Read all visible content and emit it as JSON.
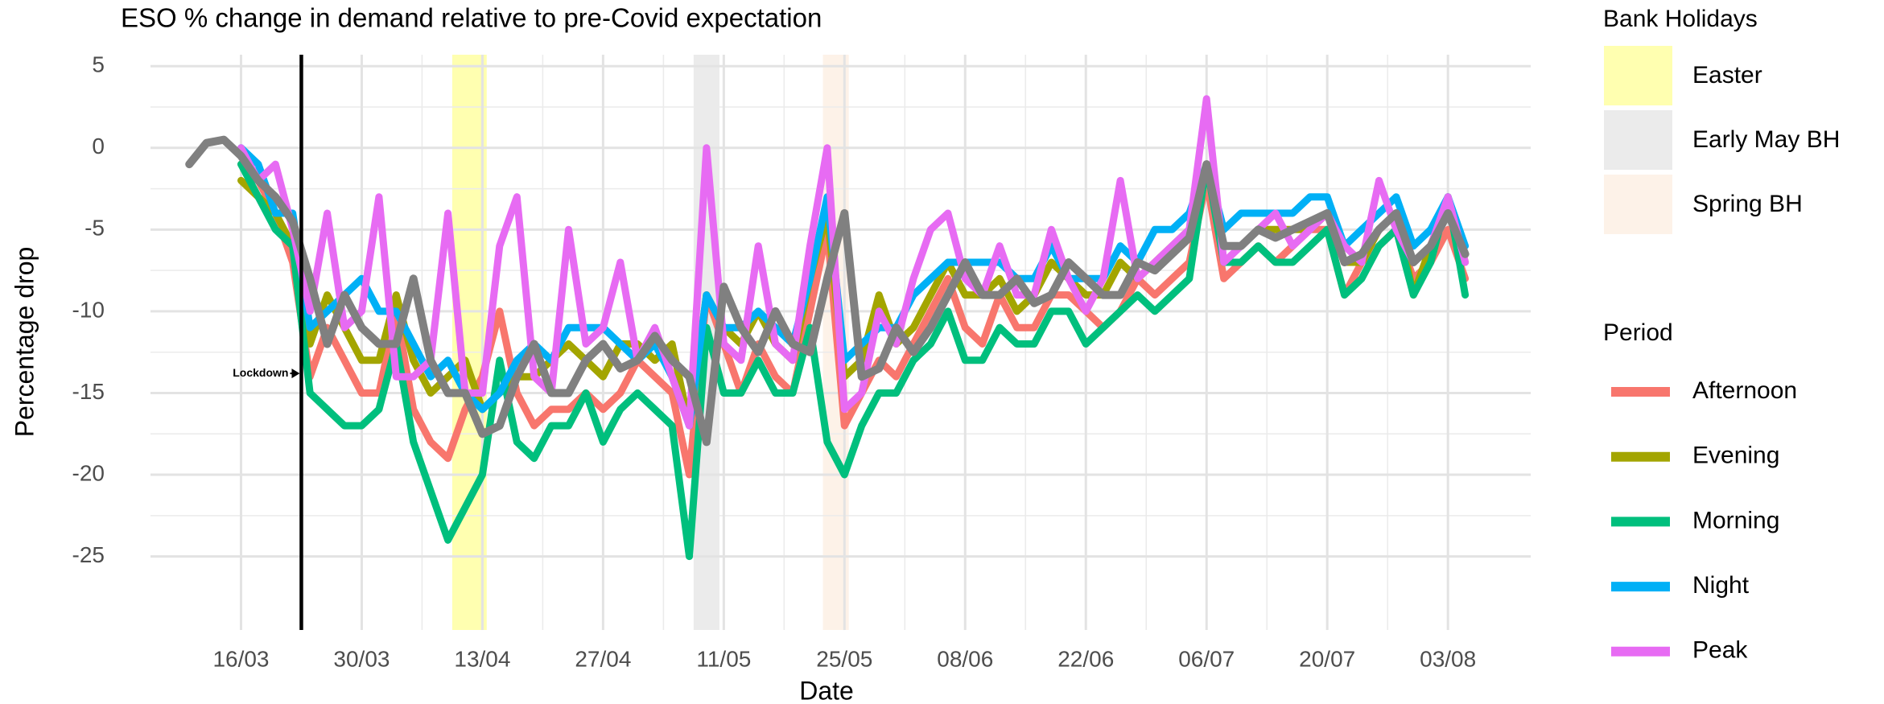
{
  "chart_data": {
    "type": "line",
    "title": "ESO % change in demand relative to pre-Covid expectation",
    "x_label": "Date",
    "y_label": "Percentage drop",
    "x": [
      "10/03",
      "12/03",
      "14/03",
      "16/03",
      "18/03",
      "20/03",
      "22/03",
      "24/03",
      "26/03",
      "28/03",
      "30/03",
      "01/04",
      "03/04",
      "05/04",
      "07/04",
      "09/04",
      "11/04",
      "13/04",
      "15/04",
      "17/04",
      "19/04",
      "21/04",
      "23/04",
      "25/04",
      "27/04",
      "29/04",
      "01/05",
      "03/05",
      "05/05",
      "07/05",
      "09/05",
      "11/05",
      "13/05",
      "15/05",
      "17/05",
      "19/05",
      "21/05",
      "23/05",
      "25/05",
      "27/05",
      "29/05",
      "31/05",
      "02/06",
      "04/06",
      "06/06",
      "08/06",
      "10/06",
      "12/06",
      "14/06",
      "16/06",
      "18/06",
      "20/06",
      "22/06",
      "24/06",
      "26/06",
      "28/06",
      "30/06",
      "02/07",
      "04/07",
      "06/07",
      "08/07",
      "10/07",
      "12/07",
      "14/07",
      "16/07",
      "18/07",
      "20/07",
      "22/07",
      "24/07",
      "26/07",
      "28/07",
      "30/07",
      "01/08",
      "03/08",
      "05/08"
    ],
    "xticks": [
      "16/03",
      "30/03",
      "13/04",
      "27/04",
      "11/05",
      "25/05",
      "08/06",
      "22/06",
      "06/07",
      "20/07",
      "03/08"
    ],
    "ylim": [
      -29.5,
      5.7
    ],
    "yticks": [
      5,
      0,
      -5,
      -10,
      -15,
      -20,
      -25
    ],
    "grid": true,
    "series": [
      {
        "name": "Afternoon",
        "color": "#F8766D",
        "values": [
          null,
          null,
          null,
          -1,
          -2,
          -4,
          -7,
          -14,
          -11,
          -13,
          -15,
          -15,
          -10,
          -16,
          -18,
          -19,
          -16,
          -14,
          -10,
          -15,
          -17,
          -16,
          -16,
          -15,
          -16,
          -15,
          -13,
          -14,
          -15,
          -20,
          -9,
          -12,
          -15,
          -12,
          -14,
          -15,
          -10,
          -5,
          -17,
          -15,
          -13,
          -14,
          -12,
          -10,
          -8,
          -11,
          -12,
          -9,
          -11,
          -11,
          -9,
          -9,
          -10,
          -11,
          -10,
          -8,
          -9,
          -8,
          -7,
          -2,
          -8,
          -7,
          -6,
          -7,
          -6,
          -5,
          -5,
          -9,
          -7,
          -6,
          -5,
          -8,
          -7,
          -5,
          -8
        ]
      },
      {
        "name": "Evening",
        "color": "#A3A500",
        "values": [
          null,
          null,
          null,
          -2,
          -3,
          -4,
          -6,
          -12,
          -9,
          -11,
          -13,
          -13,
          -9,
          -13,
          -15,
          -14,
          -13,
          -16,
          -15,
          -14,
          -14,
          -13,
          -12,
          -13,
          -14,
          -12,
          -12,
          -13,
          -12,
          -17,
          -9,
          -11,
          -12,
          -10,
          -12,
          -13,
          -8,
          -4,
          -14,
          -13,
          -9,
          -12,
          -11,
          -9,
          -7,
          -9,
          -9,
          -8,
          -10,
          -9,
          -7,
          -8,
          -9,
          -9,
          -7,
          -8,
          -7,
          -6,
          -5,
          -1,
          -6,
          -6,
          -5,
          -5,
          -5,
          -5,
          -4,
          -7,
          -7,
          -5,
          -4,
          -9,
          -6,
          -3,
          -7
        ]
      },
      {
        "name": "Morning",
        "color": "#00BF7D",
        "values": [
          null,
          null,
          null,
          -1,
          -3,
          -5,
          -6,
          -15,
          -16,
          -17,
          -17,
          -16,
          -12,
          -18,
          -21,
          -24,
          -22,
          -20,
          -13,
          -18,
          -19,
          -17,
          -17,
          -15,
          -18,
          -16,
          -15,
          -16,
          -17,
          -25,
          -11,
          -15,
          -15,
          -13,
          -15,
          -15,
          -11,
          -18,
          -20,
          -17,
          -15,
          -15,
          -13,
          -12,
          -10,
          -13,
          -13,
          -11,
          -12,
          -12,
          -10,
          -10,
          -12,
          -11,
          -10,
          -9,
          -10,
          -9,
          -8,
          -1,
          -7,
          -7,
          -6,
          -7,
          -7,
          -6,
          -5,
          -9,
          -8,
          -6,
          -5,
          -9,
          -7,
          -3,
          -9
        ]
      },
      {
        "name": "Night",
        "color": "#00B0F6",
        "values": [
          null,
          null,
          null,
          0,
          -1,
          -4,
          -4,
          -11,
          -10,
          -9,
          -8,
          -10,
          -10,
          -12,
          -14,
          -13,
          -15,
          -16,
          -15,
          -13,
          -12,
          -13,
          -11,
          -11,
          -11,
          -12,
          -13,
          -12,
          -14,
          -17,
          -9,
          -11,
          -11,
          -10,
          -11,
          -12,
          -8,
          -3,
          -13,
          -12,
          -11,
          -11,
          -9,
          -8,
          -7,
          -7,
          -7,
          -7,
          -8,
          -8,
          -6,
          -8,
          -8,
          -8,
          -6,
          -7,
          -5,
          -5,
          -4,
          -1,
          -5,
          -4,
          -4,
          -4,
          -4,
          -3,
          -3,
          -6,
          -5,
          -4,
          -3,
          -6,
          -5,
          -3,
          -6
        ]
      },
      {
        "name": "Peak",
        "color": "#E76BF3",
        "values": [
          null,
          null,
          null,
          0,
          -2,
          -1,
          -5,
          -10,
          -4,
          -11,
          -10,
          -3,
          -14,
          -14,
          -13,
          -4,
          -15,
          -15,
          -6,
          -3,
          -14,
          -15,
          -5,
          -12,
          -11,
          -7,
          -13,
          -11,
          -14,
          -17,
          0,
          -12,
          -13,
          -6,
          -12,
          -13,
          -6,
          0,
          -16,
          -15,
          -10,
          -12,
          -8,
          -5,
          -4,
          -8,
          -9,
          -6,
          -9,
          -9,
          -5,
          -8,
          -10,
          -8,
          -2,
          -8,
          -7,
          -6,
          -5,
          3,
          -7,
          -6,
          -5,
          -4,
          -6,
          -5,
          -4,
          -6,
          -7,
          -2,
          -5,
          -7,
          -6,
          -3,
          -7
        ]
      },
      {
        "color": "#808080",
        "values": [
          -1,
          0.3,
          0.5,
          -0.5,
          -2,
          -3,
          -4.5,
          -8,
          -12,
          -9,
          -11,
          -12,
          -12,
          -8,
          -13,
          -15,
          -15,
          -17.5,
          -17,
          -14,
          -12,
          -15,
          -15,
          -13,
          -12,
          -13.5,
          -13,
          -11.5,
          -13,
          -14,
          -18,
          -8.5,
          -11,
          -12.5,
          -10,
          -12,
          -12.5,
          -8,
          -4,
          -14,
          -13.5,
          -11,
          -12.5,
          -11,
          -9,
          -7,
          -9,
          -9,
          -8,
          -9.5,
          -9,
          -7,
          -8,
          -9,
          -9,
          -7,
          -7.5,
          -6.5,
          -5.5,
          -1,
          -6,
          -6,
          -5,
          -5.5,
          -5,
          -4.5,
          -4,
          -7,
          -6.5,
          -5,
          -4,
          -7,
          -6,
          -4,
          -6.5
        ]
      }
    ],
    "bands_title": "Bank Holidays",
    "bands": [
      {
        "name": "Easter",
        "color": "#FFFFB0",
        "x": [
          "10/04",
          "13/04"
        ]
      },
      {
        "name": "Early May BH",
        "color": "#EBEBEB",
        "x": [
          "08/05",
          "10/05"
        ]
      },
      {
        "name": "Spring BH",
        "color": "#FDF2E8",
        "x": [
          "23/05",
          "25/05"
        ]
      }
    ],
    "legend_title": "Period",
    "annotation": {
      "x": "23/03",
      "y": -13.8,
      "label": "Lockdown"
    }
  }
}
